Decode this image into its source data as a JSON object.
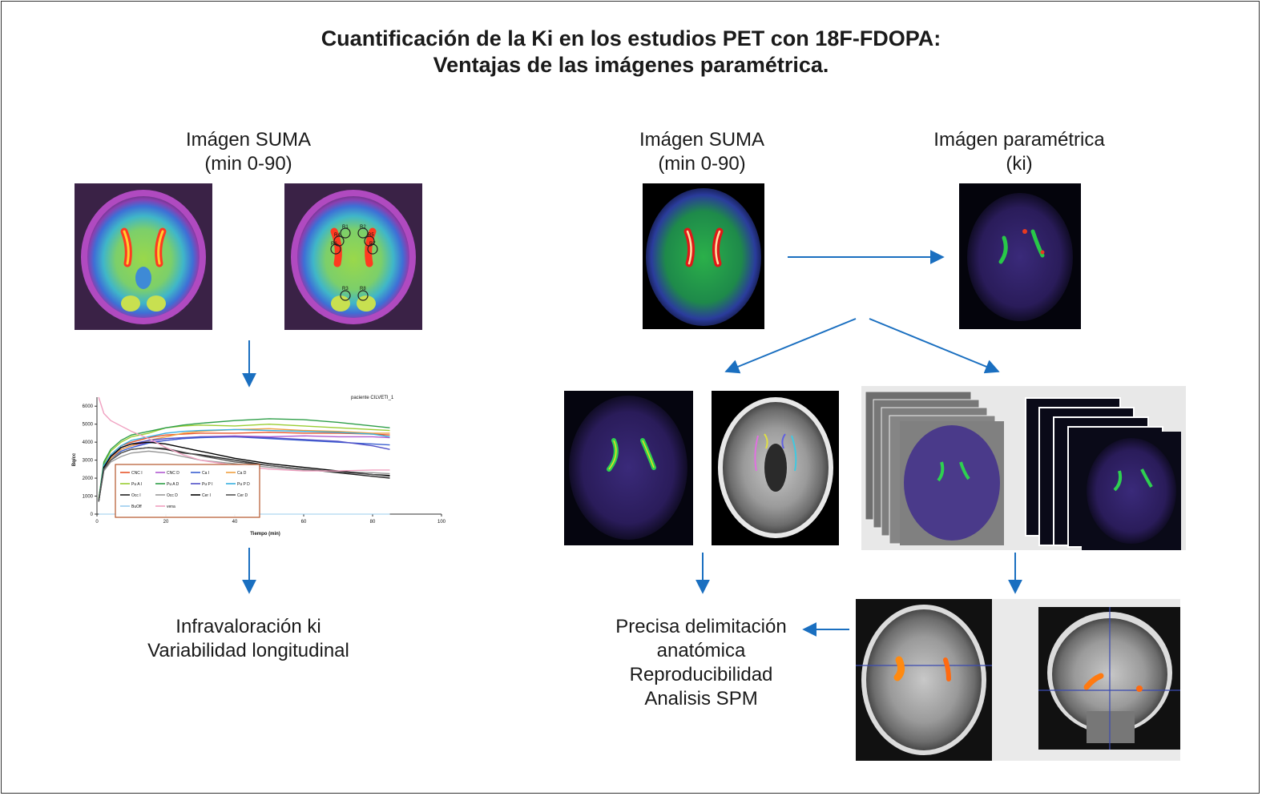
{
  "title": {
    "line1": "Cuantificación de la Ki en los estudios PET con 18F-FDOPA:",
    "line2": "Ventajas de las imágenes paramétrica."
  },
  "left_label": {
    "line1": "Imágen SUMA",
    "line2": "(min 0-90)"
  },
  "mid_label": {
    "line1": "Imágen SUMA",
    "line2": "(min 0-90)"
  },
  "right_label": {
    "line1": "Imágen paramétrica",
    "line2": "(ki)"
  },
  "roi_labels": [
    "R1",
    "R2",
    "R4",
    "R5",
    "R6",
    "R7",
    "R3",
    "R8"
  ],
  "left_result": {
    "line1": "Infravaloración ki",
    "line2": "Variabilidad longitudinal"
  },
  "right_result": {
    "line1": "Precisa delimitación",
    "line2": "anatómica",
    "line3": "Reproducibilidad",
    "line4": "Analisis SPM"
  },
  "chart_data": {
    "type": "line",
    "title": "paciente CILVETI_1",
    "xlabel": "Tiempo (min)",
    "ylabel": "Bq/cc",
    "xlim": [
      0,
      100
    ],
    "ylim": [
      0,
      6500
    ],
    "xticks": [
      "0",
      "20",
      "40",
      "60",
      "80",
      "100"
    ],
    "yticks": [
      "0",
      "1000",
      "2000",
      "3000",
      "4000",
      "5000",
      "6000"
    ],
    "x": [
      0.5,
      2,
      4,
      7,
      10,
      15,
      20,
      25,
      30,
      40,
      50,
      60,
      70,
      80,
      85
    ],
    "series": [
      {
        "name": "CNC I",
        "color": "#e8552a",
        "values": [
          800,
          2700,
          3300,
          3800,
          4000,
          4250,
          4400,
          4450,
          4500,
          4500,
          4550,
          4500,
          4500,
          4450,
          4400
        ]
      },
      {
        "name": "CNC D",
        "color": "#b05ad0",
        "values": [
          700,
          2600,
          3200,
          3600,
          3800,
          4000,
          4100,
          4200,
          4300,
          4350,
          4300,
          4350,
          4300,
          4300,
          4250
        ]
      },
      {
        "name": "Ca I",
        "color": "#3a5fd0",
        "values": [
          700,
          2500,
          3100,
          3500,
          3700,
          3950,
          4100,
          4200,
          4250,
          4300,
          4200,
          4100,
          4000,
          3900,
          3850
        ]
      },
      {
        "name": "Ca D",
        "color": "#f0a040",
        "values": [
          700,
          2500,
          3100,
          3600,
          3800,
          4100,
          4300,
          4500,
          4600,
          4700,
          4750,
          4650,
          4600,
          4500,
          4500
        ]
      },
      {
        "name": "Pu A I",
        "color": "#9acd32",
        "values": [
          800,
          2800,
          3500,
          4000,
          4300,
          4500,
          4800,
          4900,
          4950,
          4900,
          5000,
          4900,
          4800,
          4700,
          4650
        ]
      },
      {
        "name": "Pu A D",
        "color": "#2e9e48",
        "values": [
          800,
          2900,
          3600,
          4100,
          4400,
          4600,
          4800,
          4950,
          5050,
          5200,
          5300,
          5250,
          5100,
          4900,
          4800
        ]
      },
      {
        "name": "Pu P I",
        "color": "#5050c8",
        "values": [
          700,
          2600,
          3200,
          3700,
          3900,
          4100,
          4200,
          4250,
          4300,
          4300,
          4250,
          4150,
          4050,
          3800,
          3600
        ]
      },
      {
        "name": "Pu P D",
        "color": "#38b0e0",
        "values": [
          700,
          2700,
          3300,
          3800,
          4100,
          4300,
          4500,
          4600,
          4650,
          4700,
          4650,
          4600,
          4550,
          4450,
          4300
        ]
      },
      {
        "name": "Occ I",
        "color": "#222222",
        "values": [
          700,
          2500,
          3000,
          3400,
          3600,
          3700,
          3600,
          3400,
          3300,
          3000,
          2700,
          2500,
          2300,
          2100,
          2000
        ]
      },
      {
        "name": "Occ D",
        "color": "#999999",
        "values": [
          700,
          2400,
          2900,
          3200,
          3400,
          3500,
          3400,
          3200,
          3000,
          2800,
          2600,
          2450,
          2350,
          2300,
          2250
        ]
      },
      {
        "name": "Cer I",
        "color": "#000000",
        "values": [
          700,
          2600,
          3200,
          3700,
          3900,
          4000,
          3900,
          3700,
          3500,
          3100,
          2800,
          2600,
          2400,
          2200,
          2150
        ]
      },
      {
        "name": "Cer D",
        "color": "#555555",
        "values": [
          700,
          2500,
          3000,
          3400,
          3600,
          3700,
          3650,
          3450,
          3250,
          2900,
          2700,
          2500,
          2350,
          2200,
          2100
        ]
      },
      {
        "name": "BuOff",
        "color": "#99ccee",
        "values": [
          0,
          0,
          0,
          0,
          0,
          0,
          0,
          0,
          0,
          0,
          0,
          0,
          0,
          0,
          0
        ]
      },
      {
        "name": "vena",
        "color": "#f0a0c0",
        "values": [
          6500,
          5600,
          5200,
          4900,
          4600,
          4200,
          3700,
          3300,
          3000,
          2700,
          2500,
          2400,
          2400,
          2450,
          2450
        ]
      }
    ]
  }
}
